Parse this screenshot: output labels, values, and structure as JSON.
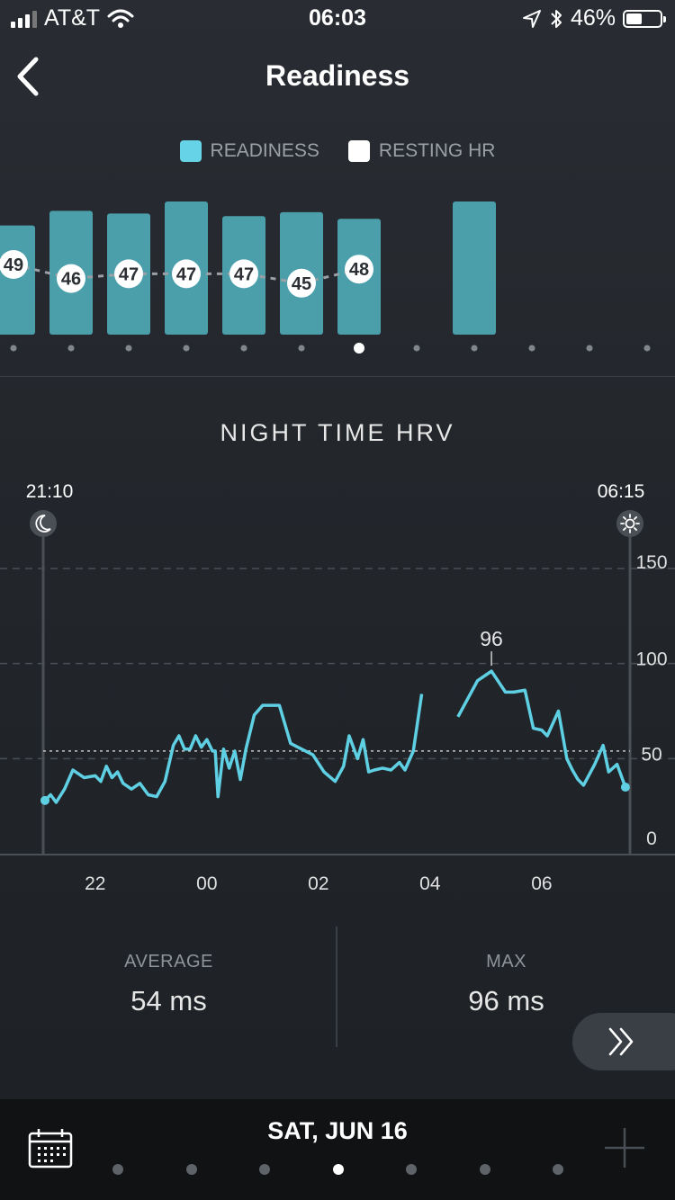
{
  "status_bar": {
    "carrier": "AT&T",
    "time": "06:03",
    "battery": "46%",
    "battery_level": 0.46
  },
  "header": {
    "title": "Readiness",
    "back_icon": "chevron-left-icon"
  },
  "legend": {
    "items": [
      {
        "label": "READINESS",
        "color": "#66d4e6"
      },
      {
        "label": "RESTING HR",
        "color": "#ffffff"
      }
    ]
  },
  "readiness_chart": {
    "type": "bar",
    "bar_color": "#4a9fab",
    "bar_heights_relative": [
      0.82,
      0.93,
      0.91,
      1.0,
      0.89,
      0.92,
      0.87,
      null,
      1.0,
      null,
      null,
      null
    ],
    "resting_hr": [
      49,
      46,
      47,
      47,
      47,
      45,
      48,
      null,
      null,
      null,
      null,
      null
    ],
    "selected_index": 6
  },
  "hrv": {
    "title": "NIGHT TIME HRV",
    "start_time": "21:10",
    "end_time": "06:15",
    "start_icon": "moon-icon",
    "end_icon": "sun-icon",
    "peak_label": "96"
  },
  "chart_data": {
    "type": "line",
    "title": "NIGHT TIME HRV",
    "xlabel": "",
    "ylabel": "",
    "x_ticks": [
      "22",
      "00",
      "02",
      "04",
      "06"
    ],
    "y_ticks": [
      "0",
      "50",
      "100",
      "150"
    ],
    "ylim": [
      0,
      150
    ],
    "average_line": 54,
    "line_color": "#5fd0e3",
    "series": [
      {
        "x_hours": [
          21.1,
          21.2,
          21.3,
          21.45,
          21.6,
          21.8,
          22.0,
          22.1,
          22.2,
          22.3,
          22.4,
          22.5,
          22.65,
          22.8,
          22.95,
          23.1,
          23.25,
          23.4,
          23.5,
          23.6,
          23.7,
          23.8,
          23.9,
          24.0,
          24.1,
          24.15,
          24.2,
          24.3,
          24.4,
          24.5,
          24.6,
          24.7,
          24.85,
          25.0,
          25.15,
          25.3,
          25.5,
          25.7,
          25.9,
          26.1,
          26.3,
          26.45,
          26.55,
          26.7,
          26.8,
          26.9,
          27.0,
          27.15,
          27.3,
          27.45,
          27.55,
          27.7,
          27.85
        ],
        "values": [
          28,
          31,
          27,
          34,
          44,
          40,
          41,
          38,
          46,
          40,
          43,
          37,
          34,
          37,
          31,
          30,
          38,
          57,
          62,
          55,
          55,
          62,
          56,
          60,
          54,
          54,
          30,
          55,
          45,
          54,
          39,
          55,
          73,
          78,
          78,
          78,
          58,
          55,
          52,
          43,
          38,
          46,
          62,
          50,
          60,
          43,
          44,
          45,
          44,
          48,
          44,
          54,
          84
        ]
      },
      {
        "x_hours": [
          28.5,
          28.85,
          29.1,
          29.35,
          29.5,
          29.7,
          29.85,
          30.0,
          30.1,
          30.3,
          30.45,
          30.55,
          30.65,
          30.75,
          30.95,
          31.1,
          31.2,
          31.35,
          31.5
        ],
        "values": [
          72,
          91,
          96,
          85,
          85,
          86,
          66,
          65,
          62,
          75,
          50,
          44,
          39,
          36,
          47,
          57,
          43,
          47,
          35
        ]
      }
    ],
    "annotations": [
      {
        "label": "96",
        "y": 96
      }
    ]
  },
  "stats": {
    "average_label": "AVERAGE",
    "average_value": "54 ms",
    "max_label": "MAX",
    "max_value": "96 ms"
  },
  "bottom": {
    "date": "SAT, JUN 16",
    "pager_count": 7,
    "pager_active": 3,
    "calendar_icon": "calendar-icon",
    "plus_icon": "plus-icon",
    "next_icon": "double-chevron-right-icon"
  }
}
